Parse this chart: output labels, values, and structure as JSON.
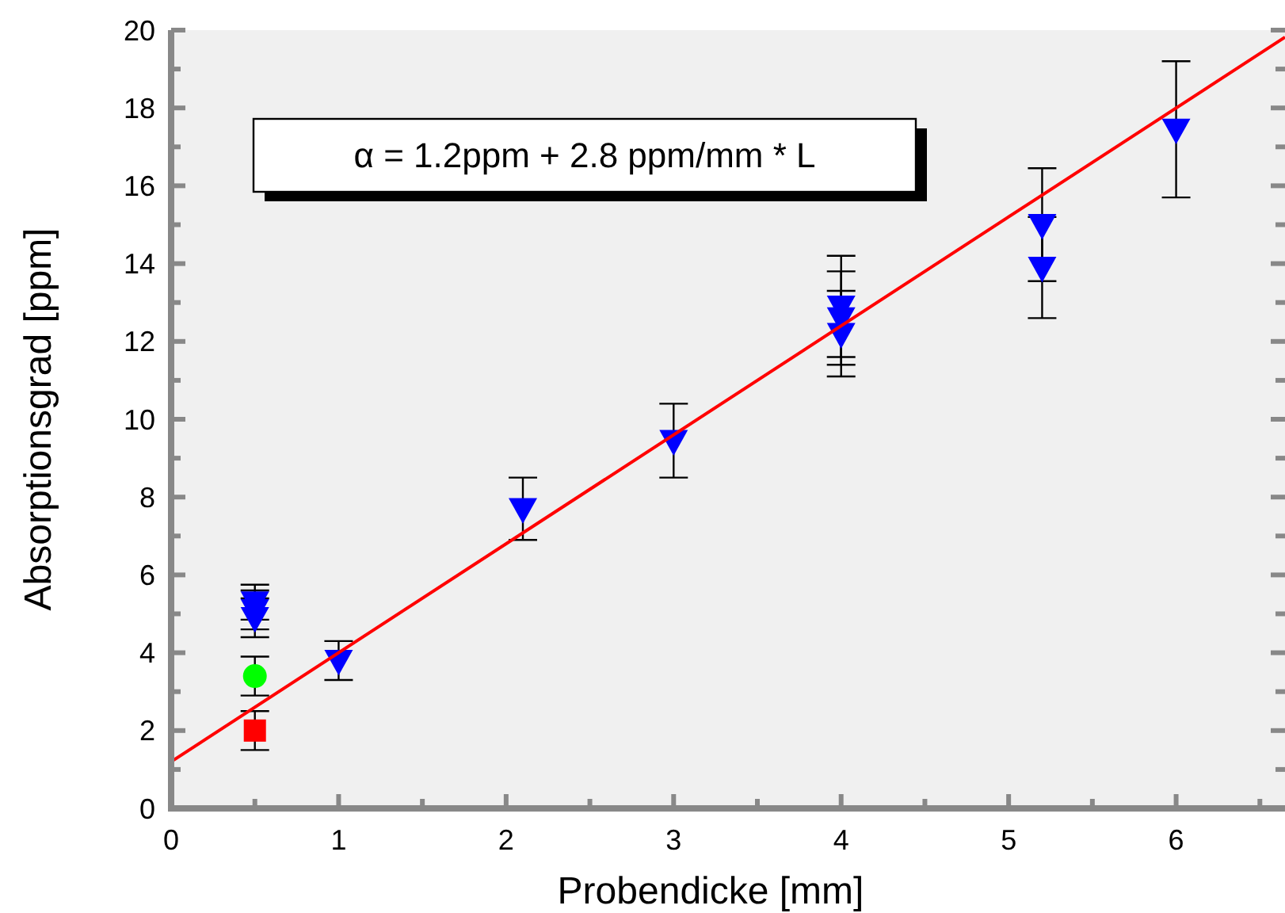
{
  "chart_data": {
    "type": "scatter",
    "xlabel": "Probendicke [mm]",
    "ylabel": "Absorptionsgrad [ppm]",
    "xlim": [
      0,
      6.65
    ],
    "ylim": [
      0,
      20
    ],
    "xticks": [
      0,
      {
        "value": 0.5,
        "label": null
      },
      1,
      {
        "value": 1.5,
        "label": null
      },
      2,
      {
        "value": 2.5,
        "label": null
      },
      3,
      {
        "value": 3.5,
        "label": null
      },
      4,
      {
        "value": 4.5,
        "label": null
      },
      5,
      {
        "value": 5.5,
        "label": null
      },
      6,
      {
        "value": 6.5,
        "label": null
      }
    ],
    "yticks": [
      0,
      {
        "value": 1,
        "label": null
      },
      2,
      {
        "value": 3,
        "label": null
      },
      4,
      {
        "value": 5,
        "label": null
      },
      6,
      {
        "value": 7,
        "label": null
      },
      8,
      {
        "value": 9,
        "label": null
      },
      10,
      {
        "value": 11,
        "label": null
      },
      12,
      {
        "value": 13,
        "label": null
      },
      14,
      {
        "value": 15,
        "label": null
      },
      16,
      {
        "value": 17,
        "label": null
      },
      18,
      {
        "value": 19,
        "label": null
      },
      20
    ],
    "grid": false,
    "annotations": [
      "α = 1.2ppm + 2.8 ppm/mm * L"
    ],
    "series": [
      {
        "marker": "triangle",
        "color": "#0000ff",
        "x": [
          0.5,
          0.5,
          0.5,
          1,
          2.1,
          3,
          4,
          4,
          4,
          5.2,
          5.2,
          6
        ],
        "values": [
          5.3,
          5.1,
          4.9,
          3.8,
          7.7,
          9.45,
          12.9,
          12.6,
          12.2,
          15.0,
          13.9,
          17.45
        ],
        "errors": [
          0.45,
          0.5,
          0.5,
          0.5,
          0.8,
          0.95,
          1.3,
          1.2,
          1.1,
          1.45,
          1.3,
          1.75
        ]
      },
      {
        "marker": "circle",
        "color": "#00ff00",
        "x": [
          0.5
        ],
        "values": [
          3.4
        ],
        "errors": [
          0.5
        ]
      },
      {
        "marker": "square",
        "color": "#ff0000",
        "x": [
          0.5
        ],
        "values": [
          2.0
        ],
        "errors": [
          0.5
        ]
      },
      {
        "type": "line",
        "color": "#ff0000",
        "x": [
          0,
          6.65
        ],
        "values": [
          1.2,
          19.82
        ]
      }
    ]
  }
}
